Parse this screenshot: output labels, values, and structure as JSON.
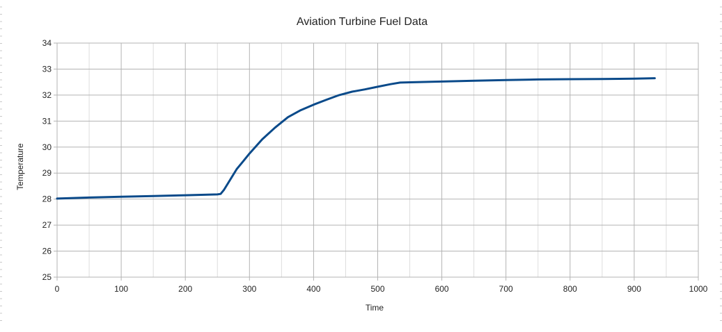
{
  "chart_data": {
    "type": "line",
    "title": "Aviation Turbine Fuel Data",
    "xlabel": "Time",
    "ylabel": "Temperature",
    "xlim": [
      0,
      1000
    ],
    "ylim": [
      25,
      34
    ],
    "x_major_step": 100,
    "x_minor_step": 50,
    "y_major_step": 1,
    "y_minor_step": 1,
    "x_ticks": [
      "0",
      "100",
      "200",
      "300",
      "400",
      "500",
      "600",
      "700",
      "800",
      "900",
      "1000"
    ],
    "y_ticks": [
      "25",
      "26",
      "27",
      "28",
      "29",
      "30",
      "31",
      "32",
      "33",
      "34"
    ],
    "grid": true,
    "legend": "none",
    "series": [
      {
        "color": "#0a4a8a",
        "x": [
          0,
          50,
          100,
          150,
          200,
          250,
          255,
          260,
          270,
          280,
          290,
          300,
          320,
          340,
          360,
          380,
          400,
          420,
          440,
          460,
          480,
          500,
          520,
          535,
          550,
          600,
          650,
          700,
          750,
          800,
          850,
          900,
          932
        ],
        "y": [
          28.02,
          28.06,
          28.09,
          28.12,
          28.15,
          28.18,
          28.2,
          28.35,
          28.75,
          29.15,
          29.45,
          29.75,
          30.3,
          30.75,
          31.15,
          31.42,
          31.63,
          31.82,
          32.0,
          32.13,
          32.22,
          32.32,
          32.42,
          32.48,
          32.49,
          32.52,
          32.55,
          32.58,
          32.6,
          32.61,
          32.62,
          32.63,
          32.65
        ]
      }
    ]
  }
}
